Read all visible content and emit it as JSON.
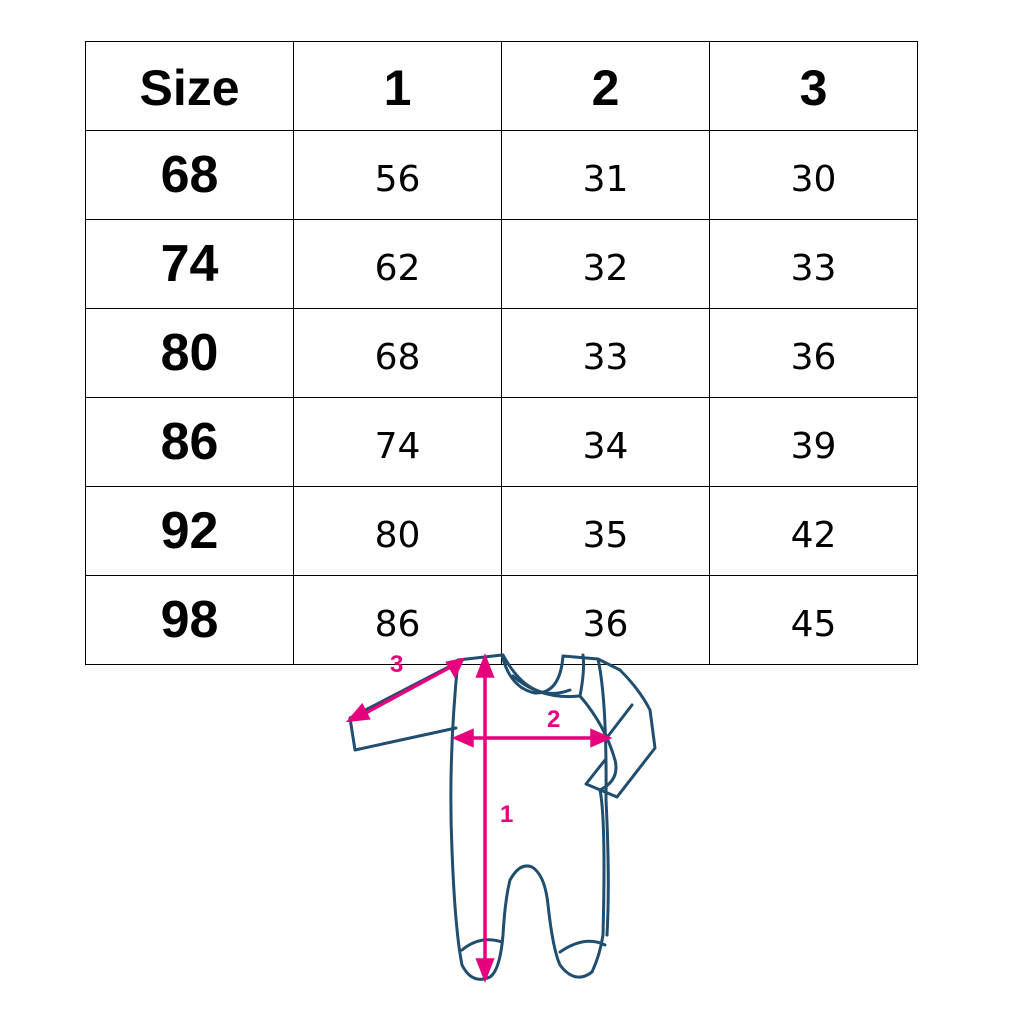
{
  "table": {
    "headers": [
      "Size",
      "1",
      "2",
      "3"
    ],
    "rows": [
      [
        "68",
        "56",
        "31",
        "30"
      ],
      [
        "74",
        "62",
        "32",
        "33"
      ],
      [
        "80",
        "68",
        "33",
        "36"
      ],
      [
        "86",
        "74",
        "34",
        "39"
      ],
      [
        "92",
        "80",
        "35",
        "42"
      ],
      [
        "98",
        "86",
        "36",
        "45"
      ]
    ]
  },
  "diagram": {
    "labels": [
      "1",
      "2",
      "3"
    ],
    "outline_color": "#1f4e6e",
    "arrow_color": "#e6007e"
  }
}
